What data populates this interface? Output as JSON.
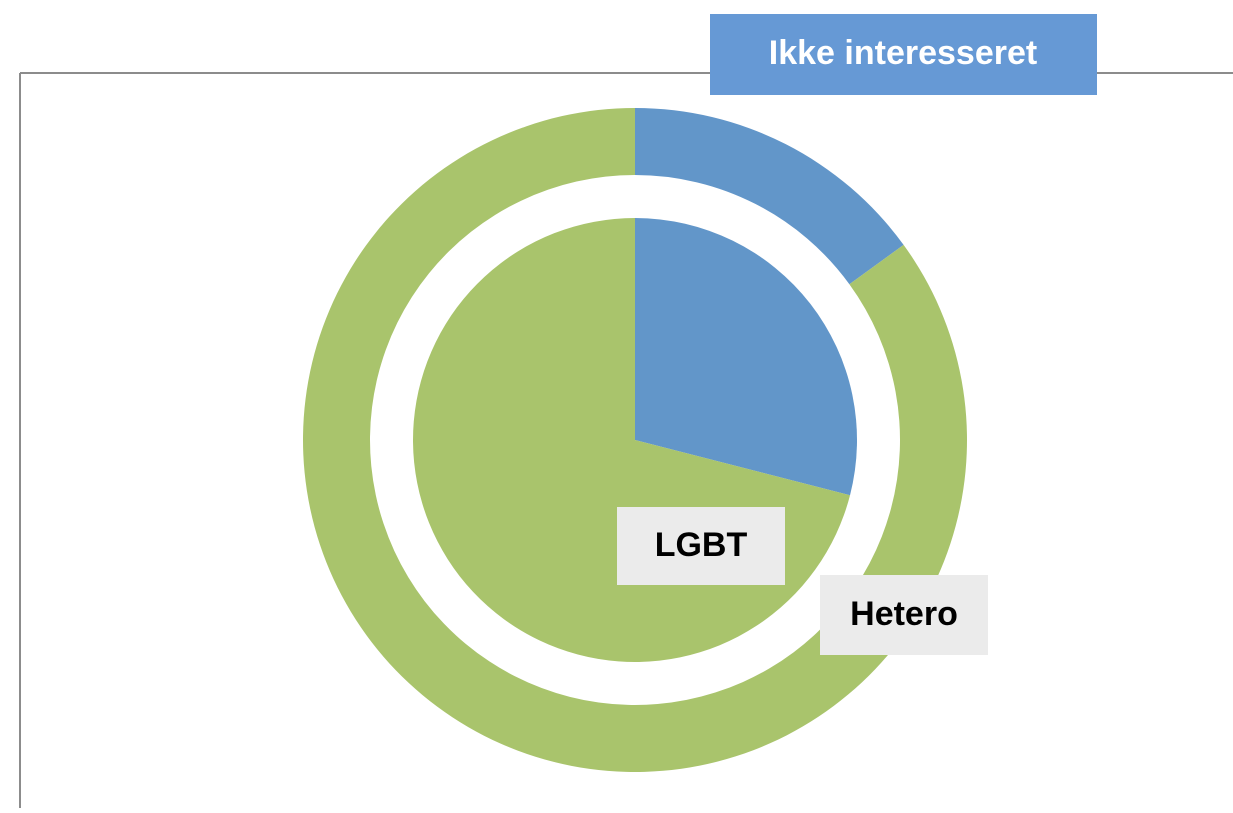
{
  "chart_data": {
    "type": "pie",
    "categories": [
      "Ikke interesseret",
      null
    ],
    "colors": [
      "#6296c9",
      "#a9c46c"
    ],
    "series": [
      {
        "name": "LGBT",
        "values": [
          29,
          71
        ]
      },
      {
        "name": "Hetero",
        "values": [
          15,
          85
        ]
      }
    ]
  }
}
